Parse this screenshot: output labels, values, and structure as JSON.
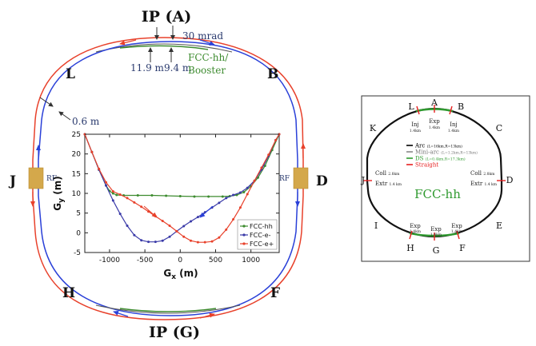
{
  "left": {
    "ip_top": "IP (A)",
    "ip_bottom": "IP (G)",
    "points": {
      "L": "L",
      "B": "B",
      "J": "J",
      "D": "D",
      "H": "H",
      "F": "F"
    },
    "rf_left": "RF",
    "rf_right": "RF",
    "angle": "30 mrad",
    "sep_left": "11.9 m",
    "sep_right": "9.4 m",
    "booster_line1": "FCC-hh/",
    "booster_line2": "Booster",
    "offset": "0.6 m",
    "colors": {
      "hh": "#3d8b2f",
      "eminus": "#2a40d8",
      "eplus": "#e8412b",
      "ring_grey": "#666666",
      "rf": "#d4a84b"
    }
  },
  "chart_data": {
    "type": "scatter",
    "xlabel": "G_x (m)",
    "ylabel": "G_y (m)",
    "xlim": [
      -1350,
      1400
    ],
    "ylim": [
      -5,
      25
    ],
    "xticks": [
      -1000,
      -500,
      0,
      500,
      1000
    ],
    "yticks": [
      -5,
      0,
      5,
      10,
      15,
      20,
      25
    ],
    "xtick_labels": [
      "-1000",
      "-500",
      "0",
      "500",
      "1000"
    ],
    "ytick_labels": [
      "-5",
      "0",
      "5",
      "10",
      "15",
      "20",
      "25"
    ],
    "legend": [
      "FCC-hh",
      "FCC-e-",
      "FCC-e+"
    ],
    "series": [
      {
        "name": "FCC-hh",
        "color": "#3d8b2f",
        "x": [
          -1350,
          -1250,
          -1150,
          -1050,
          -1000,
          -950,
          -900,
          -800,
          -600,
          -400,
          -200,
          0,
          200,
          400,
          600,
          700,
          800,
          900,
          1000,
          1100,
          1200,
          1300,
          1400
        ],
        "y": [
          25,
          20.5,
          16,
          12,
          10.6,
          10,
          9.6,
          9.5,
          9.5,
          9.5,
          9.4,
          9.3,
          9.2,
          9.2,
          9.2,
          9.3,
          9.6,
          10.3,
          11.8,
          14,
          17,
          21,
          25
        ]
      },
      {
        "name": "FCC-e-",
        "color": "#3a3aa8",
        "x": [
          -1350,
          -1250,
          -1150,
          -1050,
          -950,
          -850,
          -750,
          -650,
          -550,
          -450,
          -350,
          -250,
          -150,
          -50,
          50,
          150,
          250,
          350,
          450,
          550,
          650,
          750,
          850,
          950,
          1050,
          1150,
          1250,
          1350,
          1400
        ],
        "y": [
          25,
          20.5,
          16,
          12,
          8.2,
          4.8,
          1.8,
          -0.6,
          -1.9,
          -2.3,
          -2.3,
          -2.0,
          -1.0,
          0.4,
          1.7,
          2.9,
          4.0,
          5.2,
          6.4,
          7.6,
          8.8,
          9.6,
          10.2,
          11.4,
          13.2,
          16,
          19.5,
          23.5,
          25
        ]
      },
      {
        "name": "FCC-e+",
        "color": "#e8412b",
        "x": [
          -1350,
          -1250,
          -1150,
          -1050,
          -950,
          -850,
          -750,
          -650,
          -550,
          -450,
          -350,
          -250,
          -150,
          -50,
          50,
          150,
          250,
          350,
          450,
          550,
          650,
          750,
          850,
          950,
          1050,
          1150,
          1250,
          1350,
          1400
        ],
        "y": [
          25,
          20.5,
          16.2,
          12.8,
          10.5,
          9.7,
          8.8,
          7.7,
          6.6,
          5.4,
          4.2,
          3.0,
          1.8,
          0.4,
          -1.0,
          -2.0,
          -2.4,
          -2.4,
          -2.2,
          -1.2,
          0.8,
          3.4,
          6.4,
          9.8,
          13.2,
          16.5,
          19.8,
          23.5,
          25
        ]
      }
    ]
  },
  "right": {
    "title": "FCC-hh",
    "points": {
      "A": "A",
      "B": "B",
      "C": "C",
      "D": "D",
      "E": "E",
      "F": "F",
      "G": "G",
      "H": "H",
      "I": "I",
      "J": "J",
      "K": "K",
      "L": "L"
    },
    "inj_left_1": "Inj",
    "inj_left_2": "1.4km",
    "exp_top_1": "Exp",
    "exp_top_2": "1.4km",
    "inj_right_1": "Inj",
    "inj_right_2": "1.4km",
    "coll_left": "Coll",
    "coll_left_len": "2.8km",
    "extr_left": "Extr",
    "extr_left_len": "1.4 km",
    "coll_right": "Coll",
    "coll_right_len": "2.8km",
    "extr_right": "Extr",
    "extr_right_len": "1.4 km",
    "exp_bl_1": "Exp",
    "exp_bl_2": "1.4km",
    "exp_bc_1": "Exp",
    "exp_bc_2": "1.4km",
    "exp_br_1": "Exp",
    "exp_br_2": "1.4km",
    "legend": [
      {
        "label": "Arc",
        "detail": "(L=16km,R=13km)",
        "color": "#000000"
      },
      {
        "label": "Mini-arc",
        "detail": "(L=1.2km,R=13km)",
        "color": "#888888"
      },
      {
        "label": "DS",
        "detail": "(L=0.4km,R=17.3km)",
        "color": "#2f9a2f"
      },
      {
        "label": "Straight",
        "detail": "",
        "color": "#e62020"
      }
    ]
  }
}
